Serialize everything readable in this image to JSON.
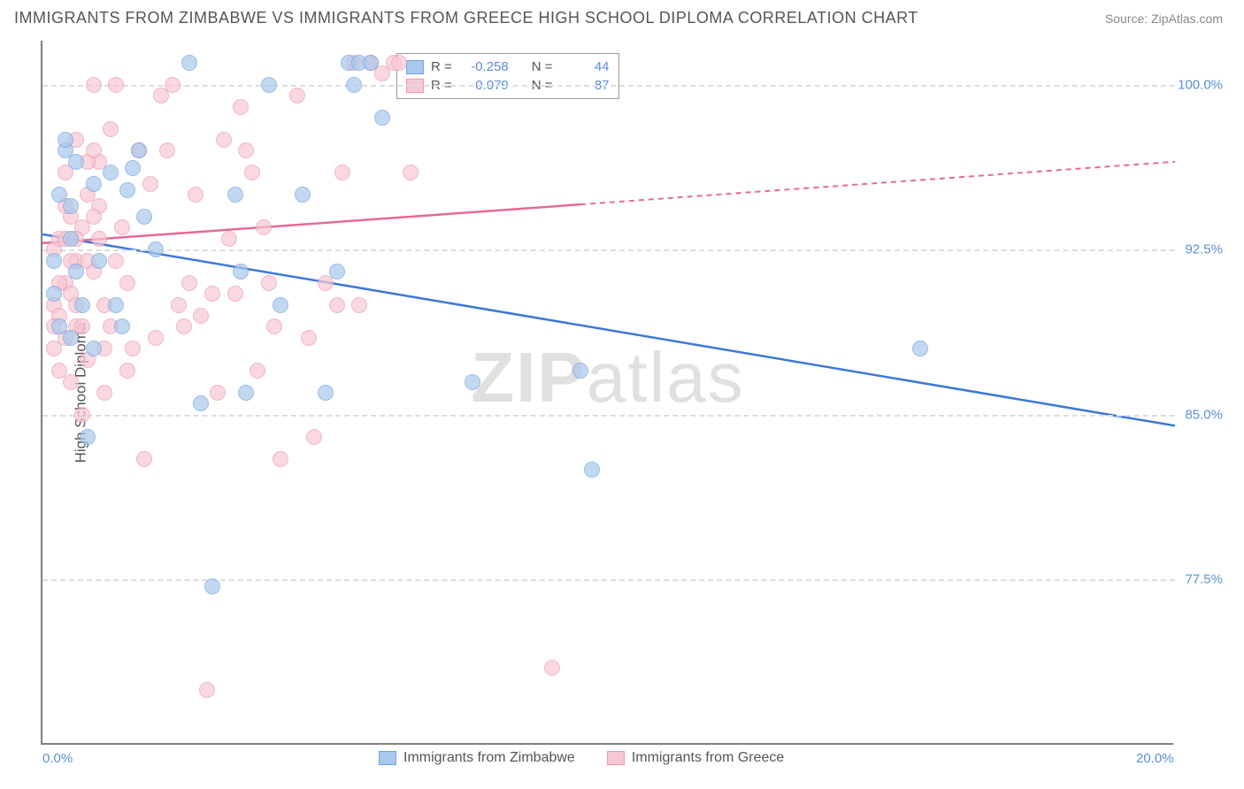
{
  "header": {
    "title": "IMMIGRANTS FROM ZIMBABWE VS IMMIGRANTS FROM GREECE HIGH SCHOOL DIPLOMA CORRELATION CHART",
    "source": "Source: ZipAtlas.com"
  },
  "chart": {
    "type": "scatter",
    "y_label": "High School Diploma",
    "watermark": {
      "bold": "ZIP",
      "rest": "atlas"
    },
    "xlim": [
      0.0,
      20.0
    ],
    "ylim": [
      70.0,
      102.0
    ],
    "x_ticks": [
      {
        "value": 0.0,
        "label": "0.0%"
      },
      {
        "value": 20.0,
        "label": "20.0%"
      }
    ],
    "y_ticks": [
      {
        "value": 77.5,
        "label": "77.5%"
      },
      {
        "value": 85.0,
        "label": "85.0%"
      },
      {
        "value": 92.5,
        "label": "92.5%"
      },
      {
        "value": 100.0,
        "label": "100.0%"
      }
    ],
    "grid_color": "#dddddd",
    "background_color": "#ffffff",
    "series": [
      {
        "name": "Immigrants from Zimbabwe",
        "fill_color": "#a9c8ec",
        "stroke_color": "#6fa3dd",
        "line_color": "#3b78d8",
        "R": "-0.258",
        "N": "44",
        "trend": {
          "x1": 0.0,
          "y1": 93.2,
          "x2": 20.0,
          "y2": 84.5,
          "solid_until_x": 20.0
        },
        "marker_radius": 9,
        "points": [
          [
            0.3,
            95.0
          ],
          [
            0.2,
            92.0
          ],
          [
            0.4,
            97.0
          ],
          [
            0.5,
            88.5
          ],
          [
            0.7,
            90.0
          ],
          [
            0.6,
            96.5
          ],
          [
            0.9,
            95.5
          ],
          [
            0.8,
            84.0
          ],
          [
            0.2,
            90.5
          ],
          [
            0.3,
            89.0
          ],
          [
            0.5,
            93.0
          ],
          [
            0.6,
            91.5
          ],
          [
            1.5,
            95.2
          ],
          [
            1.7,
            97.0
          ],
          [
            1.6,
            96.2
          ],
          [
            2.0,
            92.5
          ],
          [
            1.4,
            89.0
          ],
          [
            1.3,
            90.0
          ],
          [
            3.0,
            77.2
          ],
          [
            2.6,
            101.0
          ],
          [
            2.8,
            85.5
          ],
          [
            3.5,
            91.5
          ],
          [
            3.4,
            95.0
          ],
          [
            3.6,
            86.0
          ],
          [
            4.2,
            90.0
          ],
          [
            4.0,
            100.0
          ],
          [
            5.0,
            86.0
          ],
          [
            4.6,
            95.0
          ],
          [
            5.2,
            91.5
          ],
          [
            5.4,
            101.0
          ],
          [
            5.6,
            101.0
          ],
          [
            5.8,
            101.0
          ],
          [
            6.0,
            98.5
          ],
          [
            5.5,
            100.0
          ],
          [
            7.6,
            86.5
          ],
          [
            9.5,
            87.0
          ],
          [
            9.7,
            82.5
          ],
          [
            15.5,
            88.0
          ],
          [
            0.4,
            97.5
          ],
          [
            1.0,
            92.0
          ],
          [
            1.8,
            94.0
          ],
          [
            0.9,
            88.0
          ],
          [
            1.2,
            96.0
          ],
          [
            0.5,
            94.5
          ]
        ]
      },
      {
        "name": "Immigrants from Greece",
        "fill_color": "#f7c8d4",
        "stroke_color": "#ea9ab2",
        "line_color": "#e76a8f",
        "R": "0.079",
        "N": "87",
        "trend": {
          "x1": 0.0,
          "y1": 92.8,
          "x2": 20.0,
          "y2": 96.5,
          "solid_until_x": 9.5
        },
        "marker_radius": 9,
        "points": [
          [
            0.2,
            92.5
          ],
          [
            0.3,
            93.0
          ],
          [
            0.4,
            91.0
          ],
          [
            0.5,
            94.0
          ],
          [
            0.6,
            92.0
          ],
          [
            0.2,
            90.0
          ],
          [
            0.3,
            89.5
          ],
          [
            0.4,
            88.5
          ],
          [
            0.5,
            90.5
          ],
          [
            0.6,
            89.0
          ],
          [
            0.7,
            93.5
          ],
          [
            0.8,
            92.0
          ],
          [
            0.9,
            91.5
          ],
          [
            1.0,
            94.5
          ],
          [
            1.1,
            90.0
          ],
          [
            1.2,
            89.0
          ],
          [
            1.3,
            92.0
          ],
          [
            1.4,
            93.5
          ],
          [
            1.5,
            91.0
          ],
          [
            1.6,
            88.0
          ],
          [
            0.4,
            96.0
          ],
          [
            0.6,
            97.5
          ],
          [
            0.8,
            95.0
          ],
          [
            1.0,
            96.5
          ],
          [
            1.2,
            98.0
          ],
          [
            0.3,
            87.0
          ],
          [
            0.5,
            86.5
          ],
          [
            0.7,
            85.0
          ],
          [
            0.9,
            100.0
          ],
          [
            1.1,
            86.0
          ],
          [
            1.8,
            83.0
          ],
          [
            2.0,
            88.5
          ],
          [
            1.9,
            95.5
          ],
          [
            2.1,
            99.5
          ],
          [
            2.2,
            97.0
          ],
          [
            2.4,
            90.0
          ],
          [
            2.6,
            91.0
          ],
          [
            2.8,
            89.5
          ],
          [
            3.0,
            90.5
          ],
          [
            3.2,
            97.5
          ],
          [
            2.3,
            100.0
          ],
          [
            2.5,
            89.0
          ],
          [
            2.7,
            95.0
          ],
          [
            2.9,
            72.5
          ],
          [
            3.1,
            86.0
          ],
          [
            3.3,
            93.0
          ],
          [
            3.5,
            99.0
          ],
          [
            3.7,
            96.0
          ],
          [
            3.9,
            93.5
          ],
          [
            4.1,
            89.0
          ],
          [
            3.4,
            90.5
          ],
          [
            3.6,
            97.0
          ],
          [
            3.8,
            87.0
          ],
          [
            4.0,
            91.0
          ],
          [
            4.2,
            83.0
          ],
          [
            4.5,
            99.5
          ],
          [
            4.7,
            88.5
          ],
          [
            5.0,
            91.0
          ],
          [
            5.3,
            96.0
          ],
          [
            4.8,
            84.0
          ],
          [
            5.2,
            90.0
          ],
          [
            5.5,
            101.0
          ],
          [
            5.8,
            101.0
          ],
          [
            6.0,
            100.5
          ],
          [
            6.2,
            101.0
          ],
          [
            5.6,
            90.0
          ],
          [
            6.5,
            96.0
          ],
          [
            6.3,
            101.0
          ],
          [
            9.0,
            73.5
          ],
          [
            1.7,
            97.0
          ],
          [
            0.2,
            88.0
          ],
          [
            0.3,
            91.0
          ],
          [
            0.4,
            93.0
          ],
          [
            0.5,
            92.0
          ],
          [
            0.6,
            90.0
          ],
          [
            0.7,
            89.0
          ],
          [
            0.8,
            87.5
          ],
          [
            0.9,
            94.0
          ],
          [
            1.0,
            93.0
          ],
          [
            1.1,
            88.0
          ],
          [
            0.8,
            96.5
          ],
          [
            1.3,
            100.0
          ],
          [
            0.4,
            94.5
          ],
          [
            0.9,
            97.0
          ],
          [
            1.5,
            87.0
          ],
          [
            0.2,
            89.0
          ],
          [
            0.6,
            93.0
          ]
        ]
      }
    ],
    "legend_top_labels": {
      "R": "R =",
      "N": "N ="
    },
    "legend_bottom": [
      {
        "label": "Immigrants from Zimbabwe",
        "fill": "#a9c8ec",
        "stroke": "#6fa3dd"
      },
      {
        "label": "Immigrants from Greece",
        "fill": "#f7c8d4",
        "stroke": "#ea9ab2"
      }
    ]
  }
}
